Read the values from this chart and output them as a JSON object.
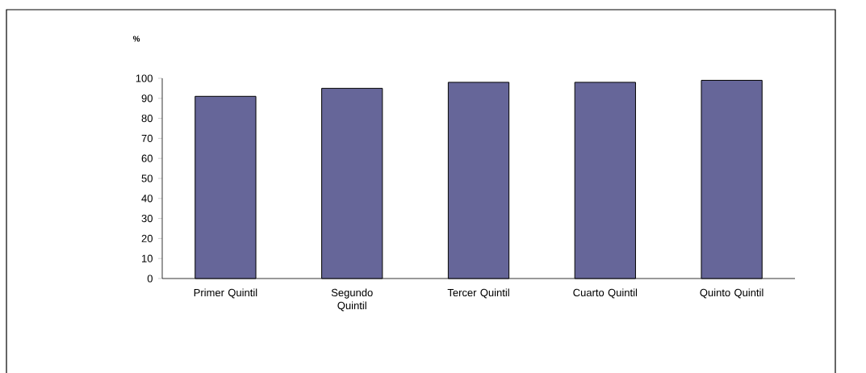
{
  "chart_data": {
    "type": "bar",
    "ylabel": "%",
    "categories": [
      "Primer Quintil",
      "Segundo Quintil",
      "Tercer Quintil",
      "Cuarto Quintil",
      "Quinto Quintil"
    ],
    "values": [
      91,
      95,
      98,
      98,
      99
    ],
    "color": "#666699",
    "ylim": [
      0,
      100
    ],
    "yticks": [
      0,
      10,
      20,
      30,
      40,
      50,
      60,
      70,
      80,
      90,
      100
    ],
    "grid": false
  }
}
